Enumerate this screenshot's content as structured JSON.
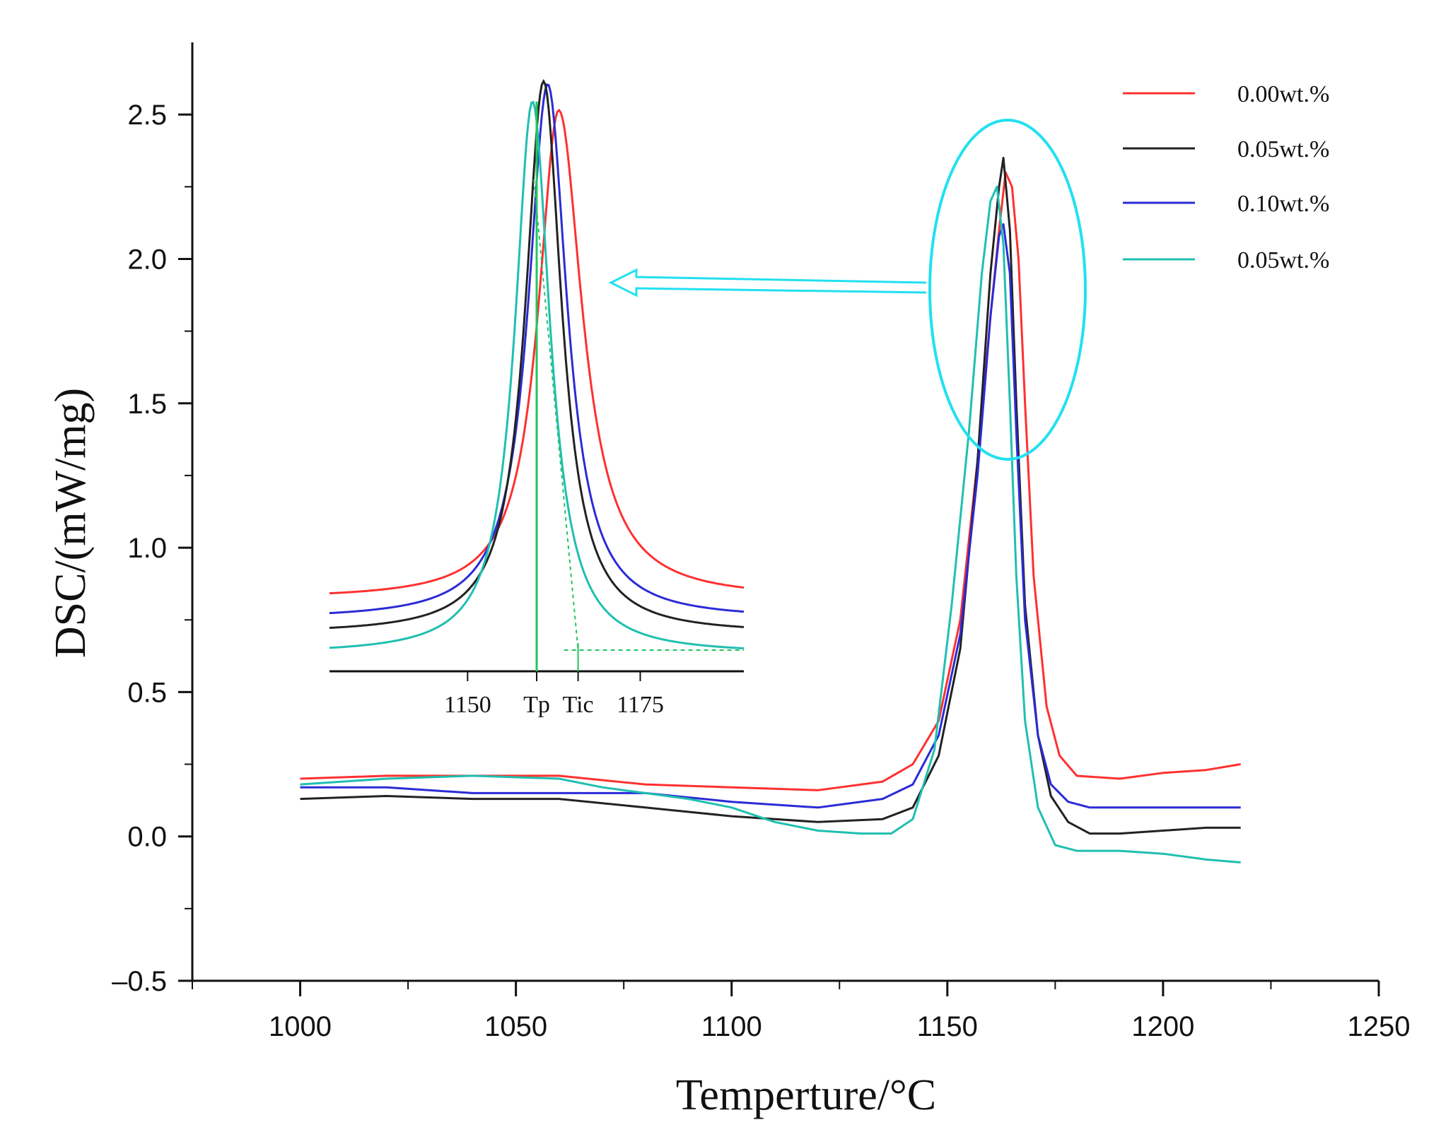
{
  "chart_data": {
    "type": "line",
    "title": "",
    "xlabel": "Temperture/°C",
    "ylabel": "DSC/(mW/mg)",
    "xlim": [
      975,
      1250
    ],
    "ylim": [
      -0.5,
      2.75
    ],
    "x_ticks": [
      1000,
      1050,
      1100,
      1150,
      1200,
      1250
    ],
    "x_tick_labels": [
      "1000",
      "1050",
      "1100",
      "1150",
      "1200",
      "1250"
    ],
    "y_ticks": [
      -0.5,
      0.0,
      0.5,
      1.0,
      1.5,
      2.0,
      2.5
    ],
    "y_tick_labels": [
      "–0.5",
      "0.0",
      "0.5",
      "1.0",
      "1.5",
      "2.0",
      "2.5"
    ],
    "legend_position": "top-right",
    "series": [
      {
        "name": "0.00wt.%",
        "color": "#ff3030",
        "x": [
          1000,
          1020,
          1040,
          1060,
          1080,
          1100,
          1120,
          1135,
          1142,
          1148,
          1153,
          1157,
          1160,
          1162,
          1163.5,
          1165,
          1166.5,
          1168,
          1170,
          1173,
          1176,
          1180,
          1190,
          1200,
          1210,
          1218
        ],
        "y": [
          0.2,
          0.21,
          0.21,
          0.21,
          0.18,
          0.17,
          0.16,
          0.19,
          0.25,
          0.4,
          0.75,
          1.3,
          1.8,
          2.1,
          2.3,
          2.25,
          2.0,
          1.5,
          0.9,
          0.45,
          0.28,
          0.21,
          0.2,
          0.22,
          0.23,
          0.25
        ]
      },
      {
        "name": "0.05wt.%",
        "color": "#222222",
        "x": [
          1000,
          1020,
          1040,
          1060,
          1080,
          1100,
          1120,
          1135,
          1142,
          1148,
          1153,
          1157,
          1160,
          1162,
          1163,
          1164.5,
          1166,
          1168,
          1171,
          1174,
          1178,
          1183,
          1190,
          1200,
          1210,
          1218
        ],
        "y": [
          0.13,
          0.14,
          0.13,
          0.13,
          0.1,
          0.07,
          0.05,
          0.06,
          0.1,
          0.28,
          0.65,
          1.3,
          1.95,
          2.25,
          2.35,
          2.1,
          1.5,
          0.8,
          0.35,
          0.14,
          0.05,
          0.01,
          0.01,
          0.02,
          0.03,
          0.03
        ]
      },
      {
        "name": "0.10wt.%",
        "color": "#2b2bd6",
        "x": [
          1000,
          1020,
          1040,
          1060,
          1080,
          1100,
          1120,
          1135,
          1142,
          1148,
          1153,
          1157,
          1160,
          1162,
          1163,
          1164.5,
          1166,
          1168,
          1171,
          1174,
          1178,
          1183,
          1190,
          1200,
          1210,
          1218
        ],
        "y": [
          0.17,
          0.17,
          0.15,
          0.15,
          0.15,
          0.12,
          0.1,
          0.13,
          0.18,
          0.35,
          0.7,
          1.25,
          1.8,
          2.08,
          2.12,
          1.95,
          1.4,
          0.75,
          0.35,
          0.18,
          0.12,
          0.1,
          0.1,
          0.1,
          0.1,
          0.1
        ]
      },
      {
        "name": "0.05wt.%",
        "color": "#1fbfb0",
        "x": [
          1000,
          1020,
          1040,
          1060,
          1070,
          1080,
          1090,
          1100,
          1110,
          1120,
          1130,
          1137,
          1142,
          1147,
          1151,
          1155,
          1158,
          1160,
          1161.5,
          1163,
          1164.5,
          1166,
          1168,
          1171,
          1175,
          1180,
          1190,
          1200,
          1210,
          1218
        ],
        "y": [
          0.18,
          0.2,
          0.21,
          0.2,
          0.17,
          0.15,
          0.13,
          0.1,
          0.05,
          0.02,
          0.01,
          0.01,
          0.06,
          0.3,
          0.8,
          1.4,
          1.95,
          2.2,
          2.25,
          2.05,
          1.5,
          0.9,
          0.4,
          0.1,
          -0.03,
          -0.05,
          -0.05,
          -0.06,
          -0.08,
          -0.09
        ]
      }
    ],
    "inset": {
      "x_tick_labels": [
        "1150",
        "Tp",
        "Tic",
        "1175"
      ],
      "annotation": "zoom of peak region (ellipse with arrow)"
    }
  }
}
